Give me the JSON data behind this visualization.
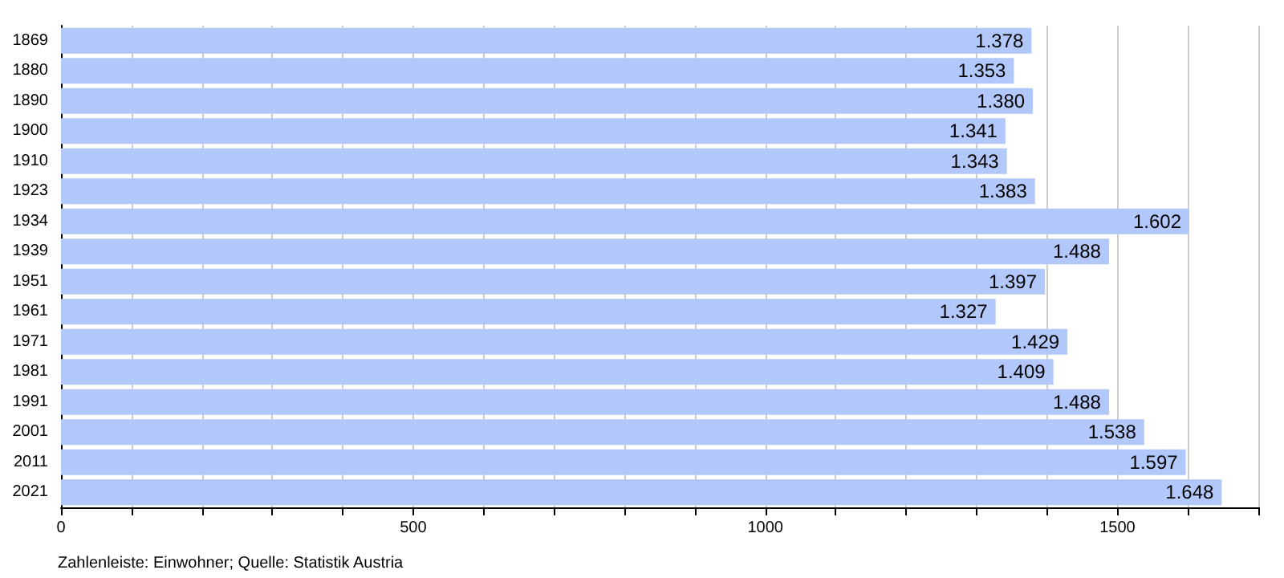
{
  "chart_data": {
    "type": "bar",
    "orientation": "horizontal",
    "categories": [
      "1869",
      "1880",
      "1890",
      "1900",
      "1910",
      "1923",
      "1934",
      "1939",
      "1951",
      "1961",
      "1971",
      "1981",
      "1991",
      "2001",
      "2011",
      "2021"
    ],
    "values": [
      1378,
      1353,
      1380,
      1341,
      1343,
      1383,
      1602,
      1488,
      1397,
      1327,
      1429,
      1409,
      1488,
      1538,
      1597,
      1648
    ],
    "value_labels": [
      "1.378",
      "1.353",
      "1.380",
      "1.341",
      "1.343",
      "1.383",
      "1.602",
      "1.488",
      "1.397",
      "1.327",
      "1.429",
      "1.409",
      "1.488",
      "1.538",
      "1.597",
      "1.648"
    ],
    "color": "#b3c8fa",
    "xlim": [
      0,
      1700
    ],
    "xticks": [
      0,
      {
        "value": 100,
        "label": null
      },
      {
        "value": 200,
        "label": null
      },
      {
        "value": 300,
        "label": null
      },
      {
        "value": 400,
        "label": null
      },
      500,
      {
        "value": 600,
        "label": null
      },
      {
        "value": 700,
        "label": null
      },
      {
        "value": 800,
        "label": null
      },
      {
        "value": 900,
        "label": null
      },
      1000,
      {
        "value": 1100,
        "label": null
      },
      {
        "value": 1200,
        "label": null
      },
      {
        "value": 1300,
        "label": null
      },
      {
        "value": 1400,
        "label": null
      },
      1500,
      {
        "value": 1600,
        "label": null
      },
      {
        "value": 1700,
        "label": null
      }
    ],
    "grid": "x",
    "annotations": [
      "Zahlenleiste: Einwohner; Quelle: Statistik Austria"
    ]
  }
}
